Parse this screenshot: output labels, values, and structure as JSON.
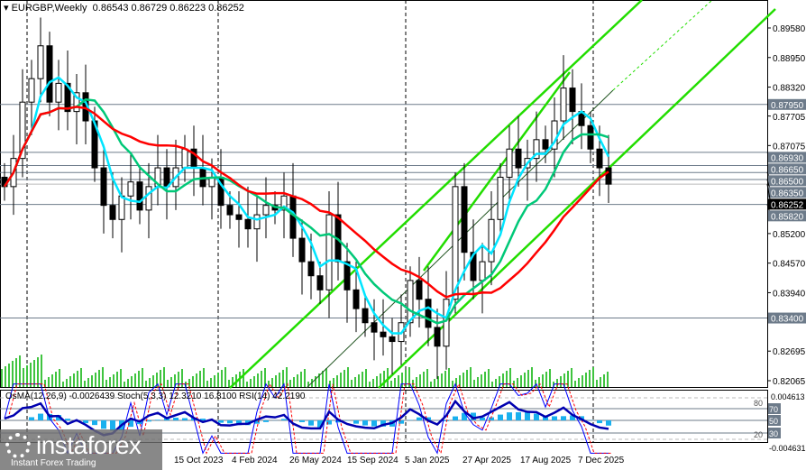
{
  "header": {
    "symbol": "EURGBP,Weekly",
    "ohlc": "0.86543 0.86729 0.86223 0.86252"
  },
  "indicators_label": "OsMA(12,26,9) -0.0026439  Stoch(5,3,3) 12.3210 16.8100  RSI(14) 42.2190",
  "logo": {
    "brand": "instaforex",
    "tagline": "Instant Forex Trading"
  },
  "colors": {
    "bull": "#000000",
    "ma_fast": "#00e5ff",
    "ma_mid": "#00c878",
    "ma_slow": "#ff0000",
    "trend": "#22dd00",
    "osma": "#1ab0ee",
    "stoch_main": "#0000ff",
    "stoch_signal": "#ff0000",
    "rsi": "#0000b0",
    "label_box": "#6d7b8a"
  },
  "chart_data": {
    "type": "candlestick",
    "title": "EURGBP,Weekly",
    "ylim": [
      0.82,
      0.901
    ],
    "y_ticks": [
      "0.89580",
      "0.88950",
      "0.88320",
      "0.87705",
      "0.87075",
      "0.85200",
      "0.84570",
      "0.83940",
      "0.82695",
      "0.82065"
    ],
    "x_ticks": [
      "15 Oct 2023",
      "4 Feb 2024",
      "26 May 2024",
      "15 Sep 2024",
      "5 Jan 2025",
      "27 Apr 2025",
      "17 Aug 2025",
      "7 Dec 2025"
    ],
    "closes": [
      0.862,
      0.868,
      0.88,
      0.885,
      0.892,
      0.88,
      0.884,
      0.878,
      0.882,
      0.876,
      0.866,
      0.858,
      0.855,
      0.86,
      0.863,
      0.857,
      0.862,
      0.866,
      0.862,
      0.866,
      0.87,
      0.866,
      0.862,
      0.864,
      0.858,
      0.856,
      0.855,
      0.853,
      0.856,
      0.858,
      0.857,
      0.86,
      0.851,
      0.846,
      0.843,
      0.84,
      0.856,
      0.846,
      0.84,
      0.836,
      0.833,
      0.831,
      0.83,
      0.829,
      0.833,
      0.842,
      0.838,
      0.832,
      0.828,
      0.838,
      0.862,
      0.848,
      0.842,
      0.846,
      0.855,
      0.864,
      0.87,
      0.866,
      0.868,
      0.872,
      0.87,
      0.876,
      0.883,
      0.878,
      0.875,
      0.87,
      0.866,
      0.86252
    ],
    "price_levels": [
      {
        "value": "0.87950"
      },
      {
        "value": "0.86930"
      },
      {
        "value": "0.86650"
      },
      {
        "value": "0.86500"
      },
      {
        "value": "0.86350"
      },
      {
        "value": "0.85820"
      },
      {
        "value": "0.83400"
      }
    ],
    "current_price": "0.86252",
    "sub_axis": {
      "top": "0.004613",
      "bottom": "-0.004631",
      "levels": [
        "80",
        "70",
        "50",
        "30",
        "20"
      ]
    }
  }
}
